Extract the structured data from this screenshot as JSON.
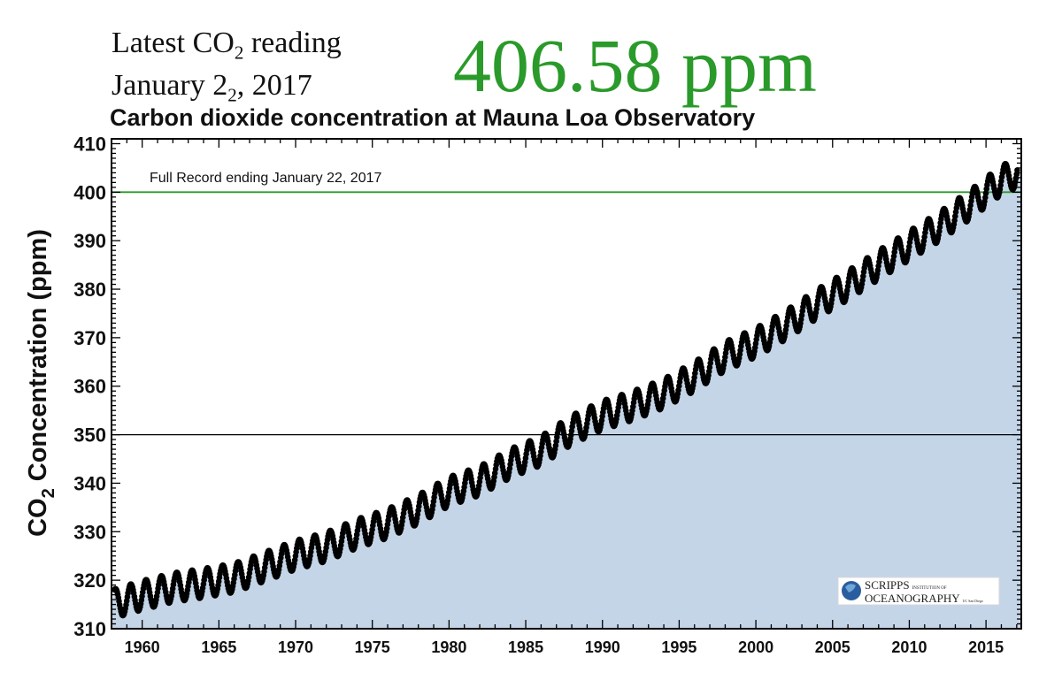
{
  "header": {
    "latest_label_prefix": "Latest CO",
    "latest_label_sub": "2",
    "latest_label_suffix": " reading",
    "latest_date_prefix": "January 2",
    "latest_date_sub": "2",
    "latest_date_suffix": ", 2017",
    "latest_value": "406.58 ppm"
  },
  "colors": {
    "accent_green": "#2a9a2a",
    "area_fill": "#c5d5e8",
    "points": "#000000"
  },
  "logo": {
    "name": "scripps-logo",
    "line1": "SCRIPPS",
    "line1_small": "INSTITUTION OF",
    "line2": "OCEANOGRAPHY",
    "line2_small": "UC San Diego"
  },
  "chart_data": {
    "type": "scatter",
    "title": "Carbon dioxide concentration at Mauna Loa Observatory",
    "annotation": "Full Record ending January 22, 2017",
    "ylabel_prefix": "CO",
    "ylabel_sub": "2",
    "ylabel_suffix": " Concentration (ppm)",
    "xlim": [
      1958,
      2017.3
    ],
    "ylim": [
      310,
      411
    ],
    "xticks": [
      1960,
      1965,
      1970,
      1975,
      1980,
      1985,
      1990,
      1995,
      2000,
      2005,
      2010,
      2015
    ],
    "yticks": [
      310,
      320,
      330,
      340,
      350,
      360,
      370,
      380,
      390,
      400,
      410
    ],
    "reference_lines": [
      {
        "y": 400,
        "color": "#2a9a2a"
      },
      {
        "y": 350,
        "color": "#000000"
      }
    ],
    "series": [
      {
        "values_note": "",
        "x": [
          1958.0,
          1960.0,
          1962.0,
          1964.0,
          1966.0,
          1968.0,
          1970.0,
          1972.0,
          1974.0,
          1976.0,
          1978.0,
          1980.0,
          1982.0,
          1984.0,
          1986.0,
          1988.0,
          1990.0,
          1992.0,
          1994.0,
          1996.0,
          1998.0,
          2000.0,
          2002.0,
          2004.0,
          2006.0,
          2008.0,
          2010.0,
          2012.0,
          2014.0,
          2016.0,
          2017.06
        ],
        "y": [
          315.0,
          316.9,
          318.5,
          319.4,
          320.5,
          322.8,
          325.2,
          326.9,
          329.6,
          331.7,
          334.6,
          338.3,
          340.5,
          344.1,
          346.7,
          351.0,
          354.0,
          356.0,
          358.5,
          362.0,
          366.2,
          369.0,
          372.7,
          377.0,
          380.8,
          385.0,
          389.0,
          393.0,
          397.5,
          402.5,
          404.0
        ],
        "seasonal_amplitude": 3.0
      }
    ]
  }
}
